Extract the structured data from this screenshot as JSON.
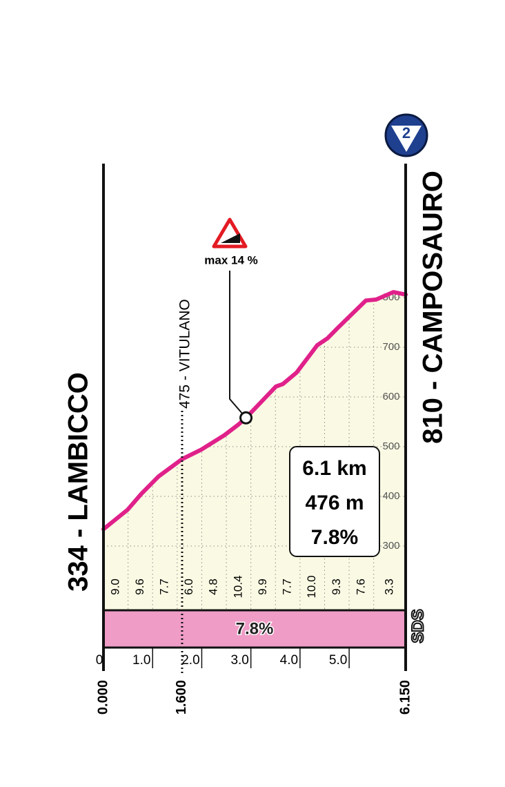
{
  "chart_data": {
    "type": "climb-profile",
    "start_label": "334 - LAMBICCO",
    "finish_label": "810 - CAMPOSAURO",
    "badge": "2",
    "logo": "SDS",
    "profile": {
      "km": [
        0,
        0.49,
        0.77,
        1.12,
        1.6,
        1.99,
        2.46,
        2.74,
        2.9,
        3.51,
        3.65,
        3.93,
        4.35,
        4.56,
        4.77,
        5.34,
        5.55,
        5.9,
        6.15
      ],
      "elevation": [
        334,
        373,
        405,
        440,
        475,
        494,
        523,
        544,
        558,
        621,
        626,
        649,
        704,
        718,
        739,
        794,
        796,
        811,
        806
      ],
      "color": "#e0218a"
    },
    "waypoint": {
      "label": "475 - VITULANO",
      "km": 1.6
    },
    "max_gradient": {
      "text": "max 14 %",
      "km": 2.9,
      "elevation": 558
    },
    "stats": [
      "6.1 km",
      "476 m",
      "7.8%"
    ],
    "average_gradient": {
      "value": 7.8,
      "label": "7.8%",
      "color": "#ef9cc6"
    },
    "gradients": {
      "values": [
        9.0,
        9.6,
        7.7,
        6.0,
        4.8,
        10.4,
        9.9,
        7.7,
        10.0,
        9.3,
        7.6,
        3.3
      ],
      "value_labels": [
        "9.0",
        "9.6",
        "7.7",
        "6.0",
        "4.8",
        "10.4",
        "9.9",
        "7.7",
        "10.0",
        "9.3",
        "7.6",
        "3.3"
      ],
      "bins": [
        0,
        0.5,
        1.0,
        1.5,
        2.0,
        2.5,
        3.0,
        3.5,
        4.0,
        4.5,
        5.0,
        5.5,
        6.15
      ]
    },
    "xlim": [
      0,
      6.15
    ],
    "ylim": [
      300,
      800
    ],
    "xticks": [
      0,
      {
        "value": 1,
        "label": "1.0"
      },
      {
        "value": 2,
        "label": "2.0"
      },
      {
        "value": 3,
        "label": "3.0"
      },
      {
        "value": 4,
        "label": "4.0"
      },
      {
        "value": 5,
        "label": "5.0"
      }
    ],
    "yticks": [
      300,
      400,
      500,
      600,
      700,
      800
    ],
    "distance_marks": [
      {
        "value": 0,
        "label": "0.000"
      },
      {
        "value": 1.6,
        "label": "1.600"
      },
      {
        "value": 6.15,
        "label": "6.150"
      }
    ]
  }
}
